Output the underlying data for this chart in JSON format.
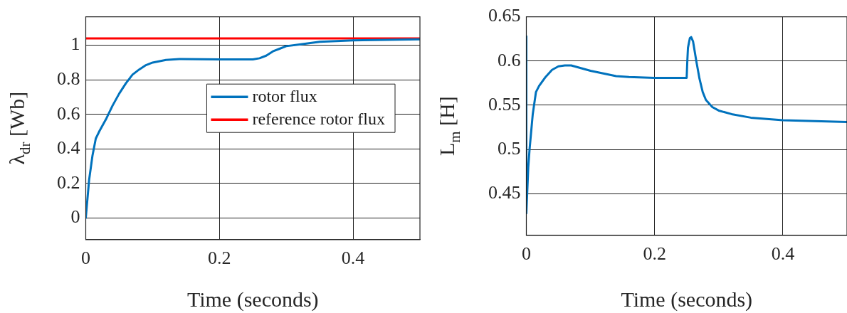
{
  "chart_data": [
    {
      "type": "line",
      "xlabel": "Time (seconds)",
      "ylabel": "λ$_{dr}$ [Wb]",
      "xlim": [
        0,
        0.5
      ],
      "xticks": [
        0,
        0.2,
        0.4
      ],
      "ylim": [
        -0.125,
        1.165
      ],
      "yticks": [
        0,
        0.2,
        0.4,
        0.6,
        0.8,
        1
      ],
      "grid": true,
      "legend": "center right",
      "series": [
        {
          "name": "rotor flux",
          "color": "#0072bd",
          "x": [
            0,
            0.005,
            0.01,
            0.015,
            0.02,
            0.03,
            0.04,
            0.05,
            0.06,
            0.07,
            0.08,
            0.09,
            0.1,
            0.12,
            0.14,
            0.2,
            0.25,
            0.26,
            0.27,
            0.28,
            0.29,
            0.3,
            0.32,
            0.35,
            0.4,
            0.45,
            0.5
          ],
          "values": [
            0,
            0.22,
            0.36,
            0.46,
            0.5,
            0.57,
            0.65,
            0.72,
            0.78,
            0.83,
            0.86,
            0.885,
            0.9,
            0.915,
            0.92,
            0.918,
            0.918,
            0.925,
            0.94,
            0.965,
            0.98,
            0.995,
            1.005,
            1.02,
            1.028,
            1.032,
            1.035
          ]
        },
        {
          "name": "reference rotor flux",
          "color": "#ff0000",
          "x": [
            0,
            0.5
          ],
          "values": [
            1.04,
            1.04
          ]
        }
      ]
    },
    {
      "type": "line",
      "xlabel": "Time (seconds)",
      "ylabel": "L$_{m}$ [H]",
      "xlim": [
        0,
        0.5
      ],
      "xticks": [
        0,
        0.2,
        0.4
      ],
      "ylim": [
        0.403,
        0.65
      ],
      "yticks": [
        0.45,
        0.5,
        0.55,
        0.6,
        0.65
      ],
      "grid": true,
      "series": [
        {
          "color": "#0072bd",
          "x": [
            0,
            0,
            0.003,
            0.005,
            0.01,
            0.015,
            0.02,
            0.03,
            0.04,
            0.05,
            0.06,
            0.07,
            0.08,
            0.1,
            0.12,
            0.14,
            0.16,
            0.2,
            0.25,
            0.251,
            0.252,
            0.255,
            0.257,
            0.26,
            0.265,
            0.27,
            0.275,
            0.28,
            0.29,
            0.3,
            0.32,
            0.35,
            0.4,
            0.45,
            0.5
          ],
          "values": [
            0.628,
            0.428,
            0.48,
            0.5,
            0.54,
            0.565,
            0.572,
            0.582,
            0.59,
            0.594,
            0.595,
            0.595,
            0.593,
            0.589,
            0.586,
            0.583,
            0.582,
            0.581,
            0.581,
            0.6,
            0.615,
            0.626,
            0.627,
            0.622,
            0.6,
            0.58,
            0.565,
            0.556,
            0.548,
            0.544,
            0.54,
            0.536,
            0.533,
            0.532,
            0.531
          ]
        }
      ]
    }
  ]
}
